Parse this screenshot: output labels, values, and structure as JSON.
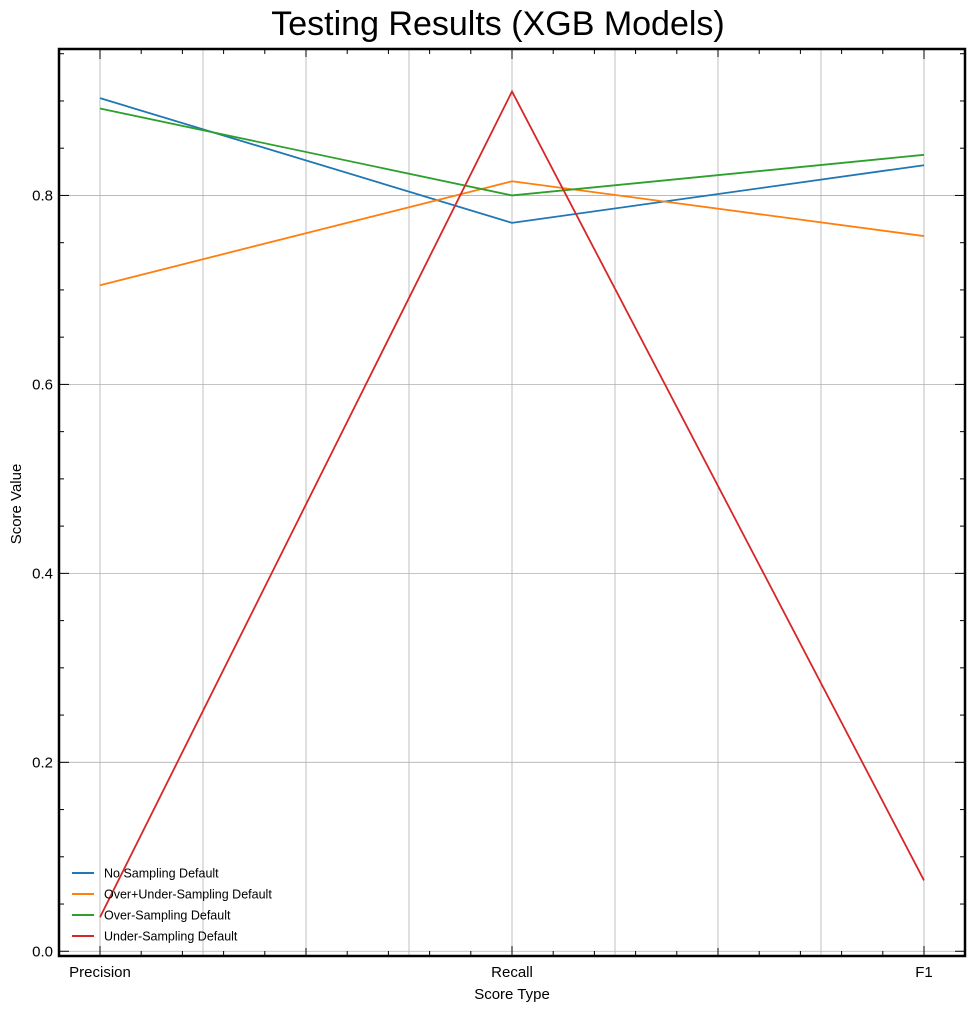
{
  "chart_data": {
    "type": "line",
    "title": "Testing Results (XGB Models)",
    "xlabel": "Score Type",
    "ylabel": "Score Value",
    "categories": [
      "Precision",
      "Recall",
      "F1"
    ],
    "ylim": [
      -0.005,
      0.955
    ],
    "yticks": [
      "0.0",
      "0.2",
      "0.4",
      "0.6",
      "0.8"
    ],
    "grid": true,
    "legend_position": "lower-left",
    "series": [
      {
        "name": "No Sampling Default",
        "color": "#1f77b4",
        "values": [
          0.903,
          0.771,
          0.832
        ]
      },
      {
        "name": "Over+Under-Sampling Default",
        "color": "#ff7f0e",
        "values": [
          0.705,
          0.815,
          0.757
        ]
      },
      {
        "name": "Over-Sampling Default",
        "color": "#2ca02c",
        "values": [
          0.892,
          0.8,
          0.843
        ]
      },
      {
        "name": "Under-Sampling Default",
        "color": "#d62728",
        "values": [
          0.036,
          0.91,
          0.075
        ]
      }
    ]
  }
}
